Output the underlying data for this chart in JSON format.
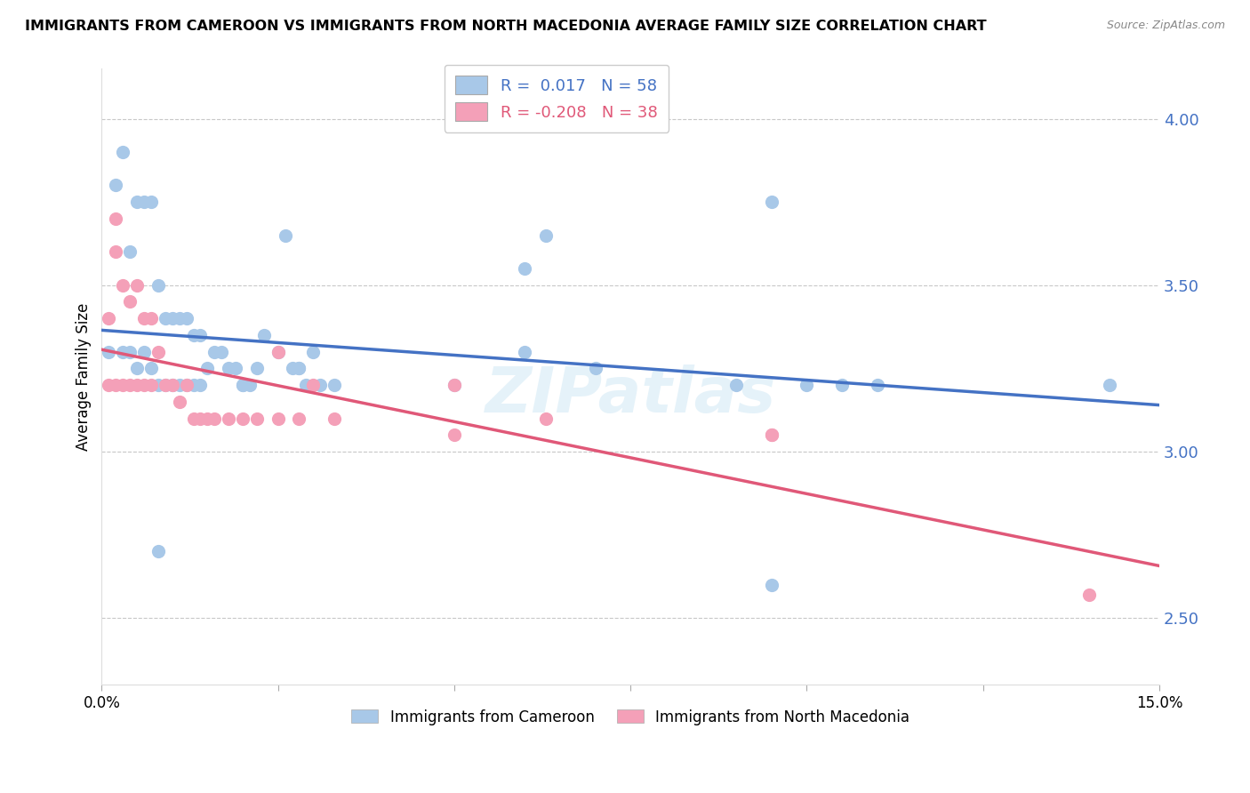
{
  "title": "IMMIGRANTS FROM CAMEROON VS IMMIGRANTS FROM NORTH MACEDONIA AVERAGE FAMILY SIZE CORRELATION CHART",
  "source": "Source: ZipAtlas.com",
  "ylabel": "Average Family Size",
  "xlim": [
    0.0,
    0.15
  ],
  "ylim": [
    2.3,
    4.15
  ],
  "yticks": [
    2.5,
    3.0,
    3.5,
    4.0
  ],
  "ytick_color": "#4472c4",
  "grid_color": "#c8c8c8",
  "background_color": "#ffffff",
  "cameroon_R": 0.017,
  "cameroon_N": 58,
  "macedonia_R": -0.208,
  "macedonia_N": 38,
  "cameroon_color": "#a8c8e8",
  "cameroon_line_color": "#4472c4",
  "macedonia_color": "#f4a0b8",
  "macedonia_line_color": "#e05878",
  "watermark": "ZIPatlas",
  "cam_x": [
    0.001,
    0.002,
    0.003,
    0.003,
    0.004,
    0.004,
    0.005,
    0.005,
    0.006,
    0.006,
    0.007,
    0.007,
    0.008,
    0.008,
    0.009,
    0.009,
    0.01,
    0.01,
    0.011,
    0.011,
    0.012,
    0.012,
    0.013,
    0.013,
    0.014,
    0.014,
    0.015,
    0.016,
    0.017,
    0.018,
    0.019,
    0.02,
    0.021,
    0.023,
    0.025,
    0.026,
    0.027,
    0.028,
    0.029,
    0.031,
    0.033,
    0.05,
    0.06,
    0.063,
    0.095,
    0.1,
    0.105,
    0.11,
    0.06,
    0.07,
    0.02,
    0.022,
    0.028,
    0.03,
    0.008,
    0.09,
    0.143,
    0.095
  ],
  "cam_y": [
    3.3,
    3.8,
    3.9,
    3.3,
    3.6,
    3.3,
    3.75,
    3.25,
    3.75,
    3.3,
    3.75,
    3.25,
    3.5,
    3.2,
    3.4,
    3.2,
    3.4,
    3.2,
    3.4,
    3.2,
    3.4,
    3.2,
    3.35,
    3.2,
    3.35,
    3.2,
    3.25,
    3.3,
    3.3,
    3.25,
    3.25,
    3.2,
    3.2,
    3.35,
    3.3,
    3.65,
    3.25,
    3.25,
    3.2,
    3.2,
    3.2,
    3.2,
    3.55,
    3.65,
    3.75,
    3.2,
    3.2,
    3.2,
    3.3,
    3.25,
    3.2,
    3.25,
    3.25,
    3.3,
    2.7,
    3.2,
    3.2,
    2.6
  ],
  "mac_x": [
    0.001,
    0.001,
    0.002,
    0.002,
    0.003,
    0.003,
    0.004,
    0.004,
    0.005,
    0.005,
    0.006,
    0.006,
    0.007,
    0.007,
    0.008,
    0.009,
    0.01,
    0.011,
    0.012,
    0.013,
    0.014,
    0.015,
    0.016,
    0.018,
    0.02,
    0.022,
    0.025,
    0.028,
    0.033,
    0.05,
    0.05,
    0.063,
    0.095,
    0.095,
    0.03,
    0.025,
    0.002,
    0.14
  ],
  "mac_y": [
    3.4,
    3.2,
    3.6,
    3.2,
    3.5,
    3.2,
    3.45,
    3.2,
    3.5,
    3.2,
    3.4,
    3.2,
    3.4,
    3.2,
    3.3,
    3.2,
    3.2,
    3.15,
    3.2,
    3.1,
    3.1,
    3.1,
    3.1,
    3.1,
    3.1,
    3.1,
    3.1,
    3.1,
    3.1,
    3.2,
    3.05,
    3.1,
    3.05,
    3.05,
    3.2,
    3.3,
    3.7,
    2.57
  ]
}
